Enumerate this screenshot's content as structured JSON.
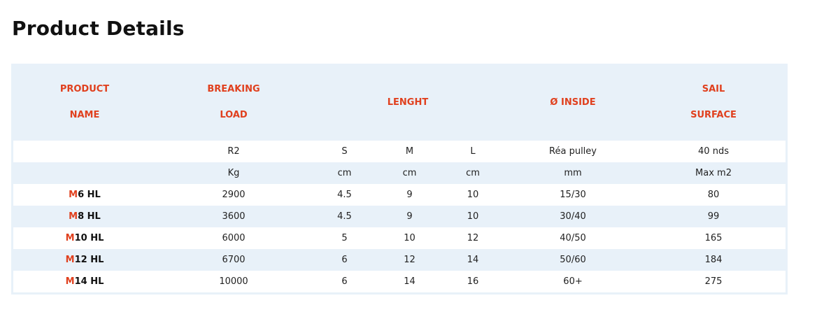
{
  "title": "Product Details",
  "headers": {
    "product_name": [
      "PRODUCT",
      "NAME"
    ],
    "breaking_load": [
      "BREAKING",
      "LOAD"
    ],
    "length": "LENGHT",
    "inside": "Ø INSIDE",
    "sail_surface": [
      "SAIL",
      "SURFACE"
    ]
  },
  "subheaders": [
    [
      "",
      "R2",
      "S",
      "M",
      "L",
      "Réa pulley",
      "40 nds"
    ],
    [
      "",
      "Kg",
      "cm",
      "cm",
      "cm",
      "mm",
      "Max m2"
    ]
  ],
  "rows": [
    {
      "prefix": "M",
      "name": "6 HL",
      "values": [
        "2900",
        "4.5",
        "9",
        "10",
        "15/30",
        "80"
      ]
    },
    {
      "prefix": "M",
      "name": "8 HL",
      "values": [
        "3600",
        "4.5",
        "9",
        "10",
        "30/40",
        "99"
      ]
    },
    {
      "prefix": "M",
      "name": "10 HL",
      "values": [
        "6000",
        "5",
        "10",
        "12",
        "40/50",
        "165"
      ]
    },
    {
      "prefix": "M",
      "name": "12 HL",
      "values": [
        "6700",
        "6",
        "12",
        "14",
        "50/60",
        "184"
      ]
    },
    {
      "prefix": "M",
      "name": "14 HL",
      "values": [
        "10000",
        "6",
        "14",
        "16",
        "60+",
        "275"
      ]
    }
  ],
  "colors": {
    "accent": "#e0401e",
    "row_alt": "#e8f1f9"
  }
}
